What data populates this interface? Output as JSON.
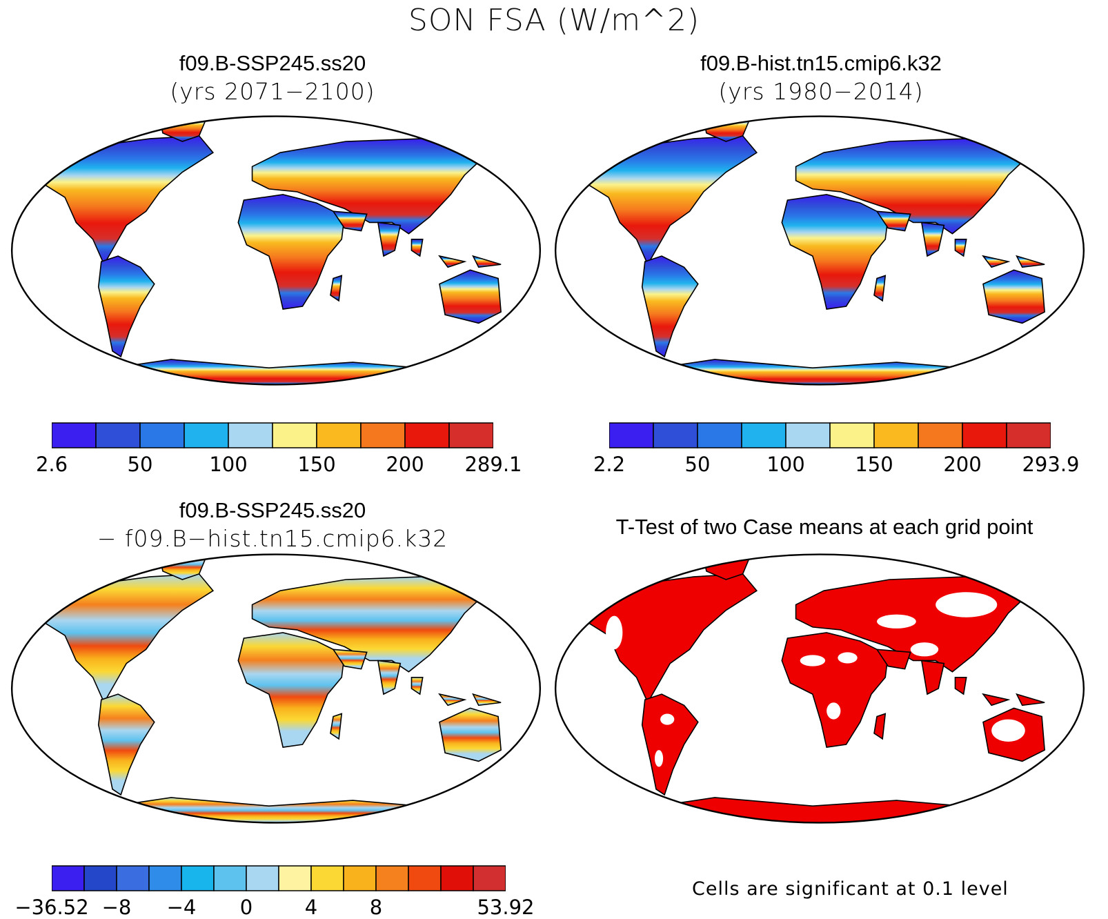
{
  "figure_title": "SON FSA (W/m^2)",
  "panels": [
    {
      "line1": "f09.B-SSP245.ss20",
      "line2": "(yrs 2071−2100)"
    },
    {
      "line1": "f09.B-hist.tn15.cmip6.k32",
      "line2": "(yrs 1980−2014)"
    },
    {
      "line1": "f09.B-SSP245.ss20",
      "line2": "− f09.B−hist.tn15.cmip6.k32"
    },
    {
      "line1": "T-Test of two Case means at each grid point",
      "line2": ""
    }
  ],
  "colorbars": [
    {
      "colors": [
        "#3b1ef0",
        "#2f4fd8",
        "#2a78e8",
        "#1fb2ee",
        "#a9d6f0",
        "#fbf28a",
        "#f9b91f",
        "#f5771e",
        "#e9180c",
        "#d62f2b"
      ],
      "labels": [
        {
          "at": 0,
          "text": "2.6"
        },
        {
          "at": 2,
          "text": "50"
        },
        {
          "at": 4,
          "text": "100"
        },
        {
          "at": 6,
          "text": "150"
        },
        {
          "at": 8,
          "text": "200"
        },
        {
          "at": 10,
          "text": "289.1"
        }
      ]
    },
    {
      "colors": [
        "#3b1ef0",
        "#2f4fd8",
        "#2a78e8",
        "#1fb2ee",
        "#a9d6f0",
        "#fbf28a",
        "#f9b91f",
        "#f5771e",
        "#e9180c",
        "#d62f2b"
      ],
      "labels": [
        {
          "at": 0,
          "text": "2.2"
        },
        {
          "at": 2,
          "text": "50"
        },
        {
          "at": 4,
          "text": "100"
        },
        {
          "at": 6,
          "text": "150"
        },
        {
          "at": 8,
          "text": "200"
        },
        {
          "at": 10,
          "text": "293.9"
        }
      ]
    },
    {
      "colors": [
        "#3b1ef0",
        "#2446c8",
        "#3a6ee0",
        "#2f8ce8",
        "#18b4ec",
        "#5ec2ee",
        "#a9d6f0",
        "#fdf3a0",
        "#fbd834",
        "#f9b21c",
        "#f5801e",
        "#f04a10",
        "#e01008",
        "#d23030"
      ],
      "labels": [
        {
          "at": 0,
          "text": "−36.52"
        },
        {
          "at": 2,
          "text": "−8"
        },
        {
          "at": 4,
          "text": "−4"
        },
        {
          "at": 6,
          "text": "0"
        },
        {
          "at": 8,
          "text": "4"
        },
        {
          "at": 10,
          "text": "8"
        },
        {
          "at": 14,
          "text": "53.92"
        }
      ]
    }
  ],
  "significance_note": "Cells are significant at 0.1 level",
  "significance_color": "#ee0000"
}
